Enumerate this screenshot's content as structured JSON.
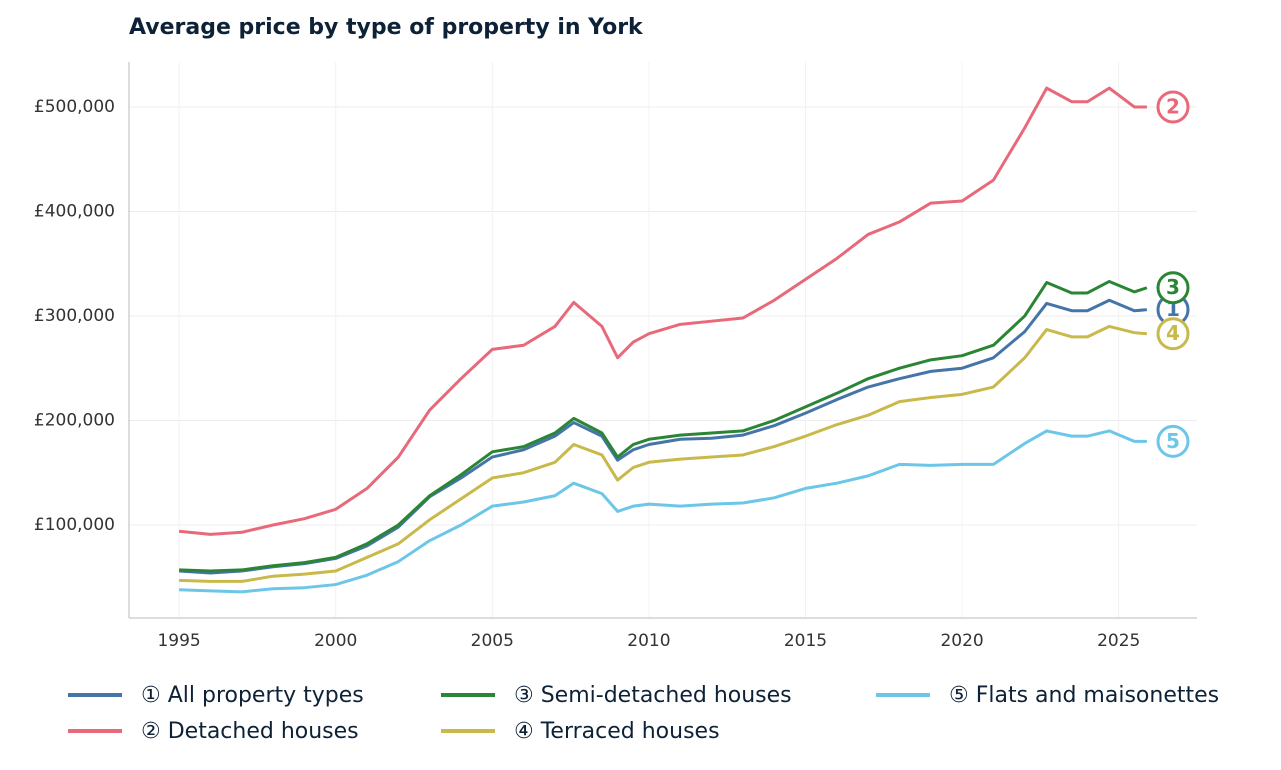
{
  "chart_data": {
    "type": "line",
    "title": "Average price by type of property in York",
    "x": [
      1995,
      1996,
      1997,
      1998,
      1999,
      2000,
      2001,
      2002,
      2003,
      2004,
      2005,
      2006,
      2007,
      2007.6,
      2008.5,
      2009,
      2009.5,
      2010,
      2011,
      2012,
      2013,
      2014,
      2015,
      2016,
      2017,
      2018,
      2019,
      2020,
      2021,
      2022,
      2022.7,
      2023.5,
      2024,
      2024.7,
      2025.5,
      2025.9
    ],
    "series": [
      {
        "name": "① All property types",
        "marker_label": "1",
        "color": "#4575a8",
        "values": [
          56000,
          54000,
          56000,
          60000,
          63000,
          68000,
          80000,
          98000,
          127000,
          145000,
          165000,
          172000,
          185000,
          198000,
          185000,
          162000,
          172000,
          177000,
          182000,
          183000,
          186000,
          195000,
          207000,
          220000,
          232000,
          240000,
          247000,
          250000,
          260000,
          285000,
          312000,
          305000,
          305000,
          315000,
          305000,
          306000
        ]
      },
      {
        "name": "② Detached houses",
        "marker_label": "2",
        "color": "#e8697a",
        "values": [
          94000,
          91000,
          93000,
          100000,
          106000,
          115000,
          135000,
          165000,
          210000,
          240000,
          268000,
          272000,
          290000,
          313000,
          290000,
          260000,
          275000,
          283000,
          292000,
          295000,
          298000,
          315000,
          335000,
          355000,
          378000,
          390000,
          408000,
          410000,
          430000,
          480000,
          518000,
          505000,
          505000,
          518000,
          500000,
          500000
        ]
      },
      {
        "name": "③ Semi-detached houses",
        "marker_label": "3",
        "color": "#2a8535",
        "values": [
          57000,
          56000,
          57000,
          61000,
          64000,
          69000,
          82000,
          100000,
          128000,
          148000,
          170000,
          175000,
          188000,
          202000,
          188000,
          165000,
          177000,
          182000,
          186000,
          188000,
          190000,
          200000,
          213000,
          226000,
          240000,
          250000,
          258000,
          262000,
          272000,
          300000,
          332000,
          322000,
          322000,
          333000,
          323000,
          327000
        ]
      },
      {
        "name": "④ Terraced houses",
        "marker_label": "4",
        "color": "#c9b94a",
        "values": [
          47000,
          46000,
          46000,
          51000,
          53000,
          56000,
          69000,
          82000,
          105000,
          125000,
          145000,
          150000,
          160000,
          177000,
          167000,
          143000,
          155000,
          160000,
          163000,
          165000,
          167000,
          175000,
          185000,
          196000,
          205000,
          218000,
          222000,
          225000,
          232000,
          260000,
          287000,
          280000,
          280000,
          290000,
          284000,
          283000
        ]
      },
      {
        "name": "⑤ Flats and maisonettes",
        "marker_label": "5",
        "color": "#6cc6e8",
        "values": [
          38000,
          37000,
          36000,
          39000,
          40000,
          43000,
          52000,
          65000,
          85000,
          100000,
          118000,
          122000,
          128000,
          140000,
          130000,
          113000,
          118000,
          120000,
          118000,
          120000,
          121000,
          126000,
          135000,
          140000,
          147000,
          158000,
          157000,
          158000,
          158000,
          178000,
          190000,
          185000,
          185000,
          190000,
          180000,
          180000
        ]
      }
    ],
    "xlim": [
      1993.4,
      2027.5
    ],
    "xticks": [
      1995,
      2000,
      2005,
      2010,
      2015,
      2020,
      2025
    ],
    "ylim": [
      11000,
      543000
    ],
    "yticks": [
      {
        "value": 100000,
        "label": "£100,000"
      },
      {
        "value": 200000,
        "label": "£200,000"
      },
      {
        "value": 300000,
        "label": "£300,000"
      },
      {
        "value": 400000,
        "label": "£400,000"
      },
      {
        "value": 500000,
        "label": "£500,000"
      }
    ],
    "grid": true
  }
}
